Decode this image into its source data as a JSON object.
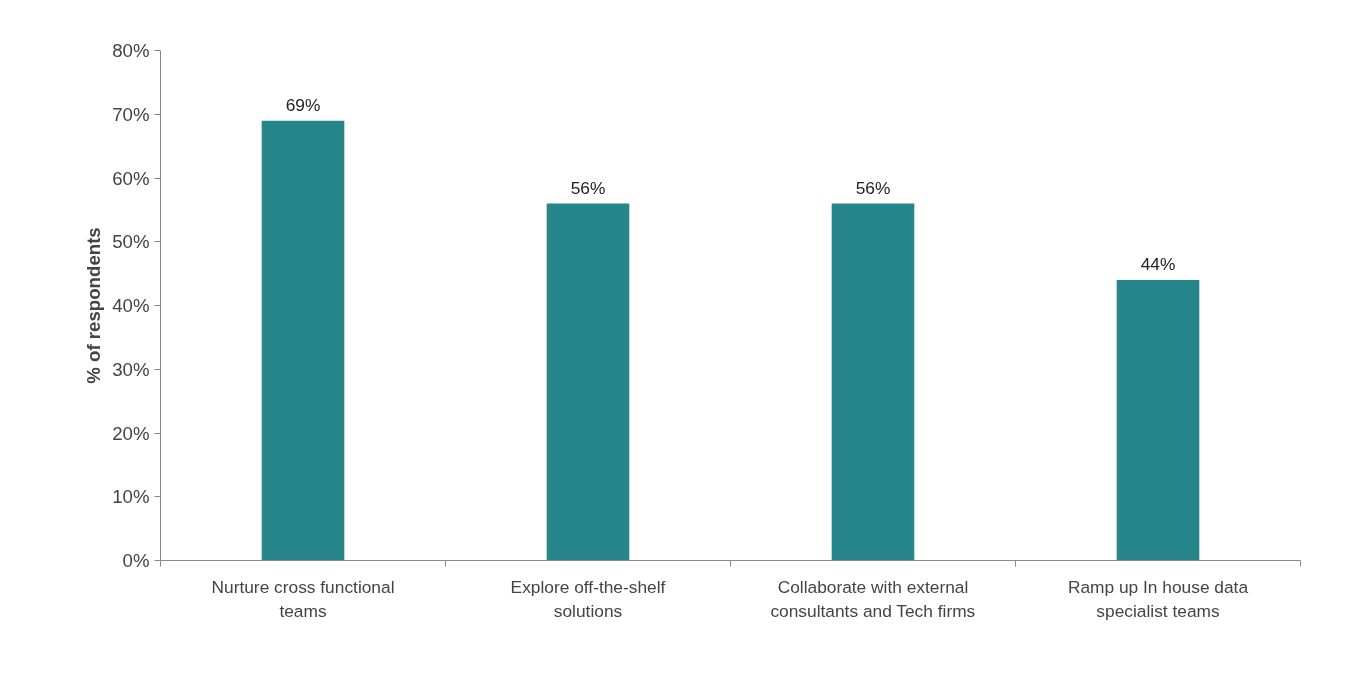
{
  "chart_data": {
    "type": "bar",
    "ylabel": "% of respondents",
    "categories": [
      "Nurture cross functional teams",
      "Explore off-the-shelf solutions",
      "Collaborate with external consultants and Tech firms",
      "Ramp up In house data specialist teams"
    ],
    "values": [
      69,
      56,
      56,
      44
    ],
    "value_labels": [
      "69%",
      "56%",
      "56%",
      "44%"
    ],
    "color": "#27868b",
    "ylim": [
      0,
      80
    ],
    "yticks": [
      {
        "value": 0,
        "label": "0%"
      },
      {
        "value": 10,
        "label": "10%"
      },
      {
        "value": 20,
        "label": "20%"
      },
      {
        "value": 30,
        "label": "30%"
      },
      {
        "value": 40,
        "label": "40%"
      },
      {
        "value": 50,
        "label": "50%"
      },
      {
        "value": 60,
        "label": "60%"
      },
      {
        "value": 70,
        "label": "70%"
      },
      {
        "value": 80,
        "label": "80%"
      }
    ],
    "grid": false
  }
}
